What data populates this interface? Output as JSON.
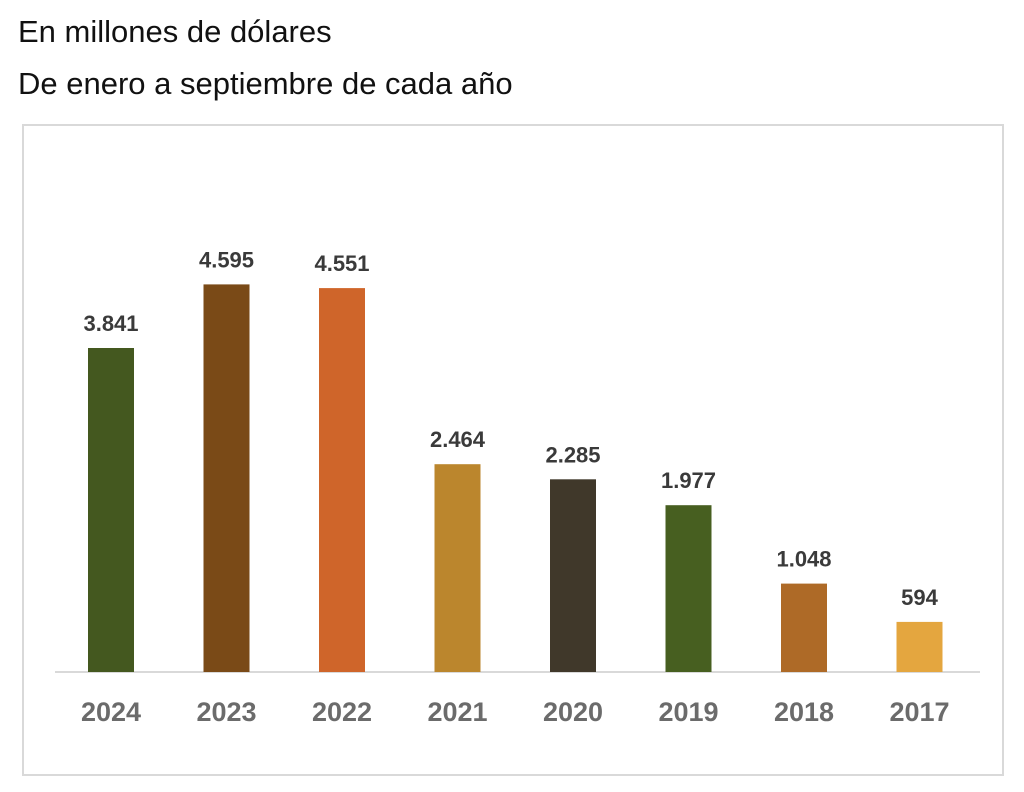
{
  "header": {
    "line1": "En millones de dólares",
    "line2": "De enero a septiembre de cada año"
  },
  "chart_data": {
    "type": "bar",
    "title": "",
    "xlabel": "",
    "ylabel": "",
    "ylim": [
      0,
      5000
    ],
    "grid": false,
    "legend": "none",
    "categories": [
      "2024",
      "2023",
      "2022",
      "2021",
      "2020",
      "2019",
      "2018",
      "2017"
    ],
    "values": [
      3841,
      4595,
      4551,
      2464,
      2285,
      1977,
      1048,
      594
    ],
    "value_labels": [
      "3.841",
      "4.595",
      "4.551",
      "2.464",
      "2.285",
      "1.977",
      "1.048",
      "594"
    ],
    "colors": [
      "#44581f",
      "#7a4a17",
      "#cf652a",
      "#bb862d",
      "#40382a",
      "#475f20",
      "#ae6a27",
      "#e4a63f"
    ]
  }
}
